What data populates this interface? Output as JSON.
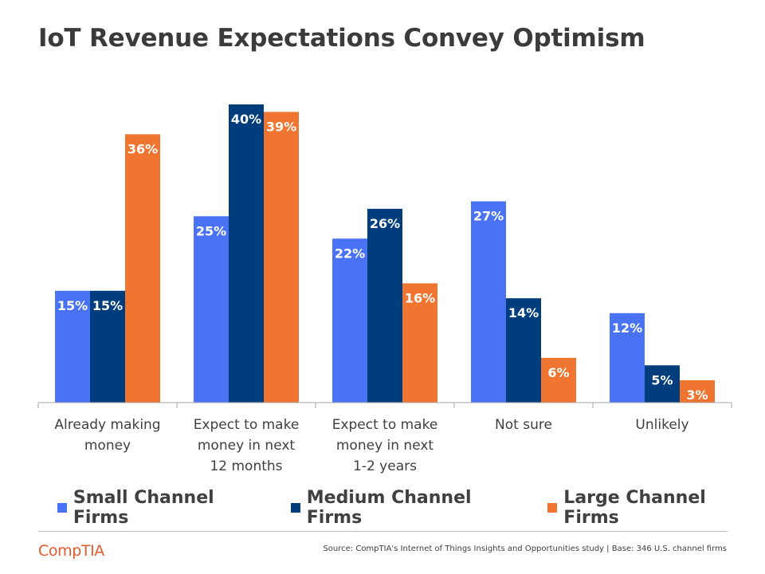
{
  "title": "IoT Revenue Expectations Convey Optimism",
  "chart_data": {
    "type": "bar",
    "title": "IoT Revenue Expectations Convey Optimism",
    "categories": [
      [
        "Already making",
        "money"
      ],
      [
        "Expect to make",
        "money in next",
        "12 months"
      ],
      [
        "Expect to make",
        "money in next",
        "1-2 years"
      ],
      [
        "Not sure"
      ],
      [
        "Unlikely"
      ]
    ],
    "series": [
      {
        "name": "Small Channel Firms",
        "color": "#4a72f5",
        "values": [
          15,
          25,
          22,
          27,
          12
        ]
      },
      {
        "name": "Medium Channel Firms",
        "color": "#003d7d",
        "values": [
          15,
          40,
          26,
          14,
          5
        ]
      },
      {
        "name": "Large Channel Firms",
        "color": "#ef7530",
        "values": [
          36,
          39,
          16,
          6,
          3
        ]
      }
    ],
    "value_suffix": "%",
    "ylim": [
      0,
      40
    ],
    "xlabel": "",
    "ylabel": "",
    "grid": false,
    "legend_position": "bottom"
  },
  "footer": {
    "logo": "CompTIA",
    "source": "Source: CompTIA's Internet of Things Insights and Opportunities study | Base: 346 U.S. channel firms"
  }
}
